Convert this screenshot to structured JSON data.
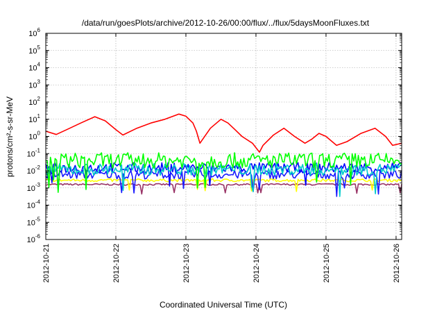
{
  "chart_data": {
    "type": "line",
    "title": "/data/run/goesPlots/archive/2012-10-26/00:00/flux/../flux/5daysMoonFluxes.txt",
    "xlabel": "Coordinated Universal Time (UTC)",
    "ylabel": "protons/cm²-s-sr-MeV",
    "ylog": true,
    "ylim": [
      1e-06,
      1000000.0
    ],
    "xlim": [
      0,
      5.08
    ],
    "x_ticks": [
      {
        "pos": 0,
        "label": "2012-10-21"
      },
      {
        "pos": 1,
        "label": "2012-10-22"
      },
      {
        "pos": 2,
        "label": "2012-10-23"
      },
      {
        "pos": 3,
        "label": "2012-10-24"
      },
      {
        "pos": 4,
        "label": "2012-10-25"
      },
      {
        "pos": 5,
        "label": "2012-10-26"
      }
    ],
    "y_ticks": [
      {
        "exp": -6,
        "label_base": "10",
        "label_exp": "-6"
      },
      {
        "exp": -5,
        "label_base": "10",
        "label_exp": "-5"
      },
      {
        "exp": -4,
        "label_base": "10",
        "label_exp": "-4"
      },
      {
        "exp": -3,
        "label_base": "10",
        "label_exp": "-3"
      },
      {
        "exp": -2,
        "label_base": "10",
        "label_exp": "-2"
      },
      {
        "exp": -1,
        "label_base": "10",
        "label_exp": "-1"
      },
      {
        "exp": 0,
        "label_base": "10",
        "label_exp": "0"
      },
      {
        "exp": 1,
        "label_base": "10",
        "label_exp": "1"
      },
      {
        "exp": 2,
        "label_base": "10",
        "label_exp": "2"
      },
      {
        "exp": 3,
        "label_base": "10",
        "label_exp": "3"
      },
      {
        "exp": 4,
        "label_base": "10",
        "label_exp": "4"
      },
      {
        "exp": 5,
        "label_base": "10",
        "label_exp": "5"
      },
      {
        "exp": 6,
        "label_base": "10",
        "label_exp": "6"
      }
    ],
    "grid": true,
    "legend": "none",
    "series": [
      {
        "color": "#ff0000",
        "x": [
          0,
          0.15,
          0.3,
          0.5,
          0.7,
          0.85,
          1.0,
          1.1,
          1.3,
          1.5,
          1.7,
          1.9,
          2.0,
          2.1,
          2.15,
          2.2,
          2.35,
          2.5,
          2.6,
          2.7,
          2.8,
          2.95,
          3.05,
          3.1,
          3.25,
          3.4,
          3.55,
          3.7,
          3.8,
          3.9,
          4.0,
          4.15,
          4.3,
          4.5,
          4.7,
          4.85,
          4.95,
          5.08
        ],
        "y": [
          2.0,
          1.3,
          2.5,
          6.0,
          14,
          8,
          2.5,
          1.2,
          3.0,
          6.0,
          10,
          20,
          15,
          6.0,
          2.0,
          0.4,
          3.0,
          10,
          6.0,
          2.5,
          1.0,
          0.4,
          0.12,
          0.3,
          1.2,
          3.0,
          1.0,
          0.4,
          0.7,
          1.5,
          1.0,
          0.3,
          0.5,
          1.5,
          3.0,
          1.0,
          0.3,
          0.4
        ]
      },
      {
        "color": "#00ff00",
        "base": 0.04,
        "amp": 0.45
      },
      {
        "color": "#00cccc",
        "base": 0.012,
        "amp": 0.35
      },
      {
        "color": "#0000ff",
        "base": 0.015,
        "amp": 0.3
      },
      {
        "color": "#1a1aff",
        "base": 0.006,
        "amp": 0.25
      },
      {
        "color": "#ffff00",
        "base": 0.0028,
        "amp": 0.08
      },
      {
        "color": "#993366",
        "base": 0.0016,
        "amp": 0.05
      }
    ]
  }
}
